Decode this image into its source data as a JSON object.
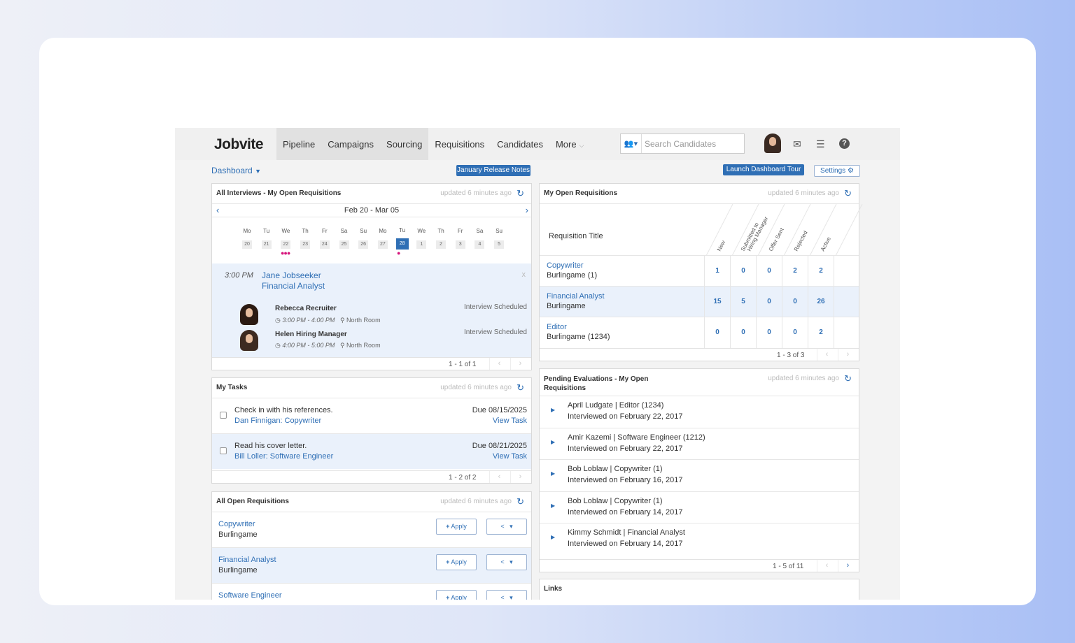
{
  "nav": {
    "logo": "Jobvite",
    "tabs": [
      "Pipeline",
      "Campaigns",
      "Sourcing",
      "Requisitions",
      "Candidates",
      "More"
    ],
    "search_placeholder": "Search Candidates"
  },
  "toolbar": {
    "dashboard": "Dashboard",
    "release_notes": "January Release Notes",
    "tour": "Launch Dashboard Tour",
    "settings": "Settings"
  },
  "interviews": {
    "title": "All Interviews - My Open Requisitions",
    "updated": "updated 6 minutes ago",
    "range": "Feb 20 - Mar 05",
    "days": [
      {
        "n": "Mo",
        "d": "20"
      },
      {
        "n": "Tu",
        "d": "21"
      },
      {
        "n": "We",
        "d": "22"
      },
      {
        "n": "Th",
        "d": "23"
      },
      {
        "n": "Fr",
        "d": "24"
      },
      {
        "n": "Sa",
        "d": "25"
      },
      {
        "n": "Su",
        "d": "26"
      },
      {
        "n": "Mo",
        "d": "27"
      },
      {
        "n": "Tu",
        "d": "28"
      },
      {
        "n": "We",
        "d": "1"
      },
      {
        "n": "Th",
        "d": "2"
      },
      {
        "n": "Fr",
        "d": "3"
      },
      {
        "n": "Sa",
        "d": "4"
      },
      {
        "n": "Su",
        "d": "5"
      }
    ],
    "time": "3:00 PM",
    "candidate": "Jane Jobseeker",
    "role": "Financial Analyst",
    "close": "x",
    "interviewers": [
      {
        "name": "Rebecca Recruiter",
        "status": "Interview Scheduled",
        "time": "3:00 PM - 4:00 PM",
        "room": "North Room"
      },
      {
        "name": "Helen Hiring Manager",
        "status": "Interview Scheduled",
        "time": "4:00 PM - 5:00 PM",
        "room": "North Room"
      }
    ],
    "paging": "1 - 1 of 1"
  },
  "tasks": {
    "title": "My Tasks",
    "updated": "updated 6 minutes ago",
    "items": [
      {
        "text": "Check in with his references.",
        "link": "Dan Finnigan: Copywriter",
        "due": "Due 08/15/2025",
        "view": "View Task"
      },
      {
        "text": "Read his cover letter.",
        "link": "Bill Loller: Software Engineer",
        "due": "Due 08/21/2025",
        "view": "View Task"
      }
    ],
    "paging": "1 - 2 of 2"
  },
  "all_reqs": {
    "title": "All Open Requisitions",
    "updated": "updated 6 minutes ago",
    "apply": "Apply",
    "items": [
      {
        "title": "Copywriter",
        "loc": "Burlingame"
      },
      {
        "title": "Financial Analyst",
        "loc": "Burlingame"
      },
      {
        "title": "Software Engineer",
        "loc": ""
      }
    ]
  },
  "my_reqs": {
    "title": "My Open Requisitions",
    "updated": "updated 6 minutes ago",
    "col_title": "Requisition Title",
    "cols": [
      "New",
      "Submitted to Hiring Manager",
      "Offer Sent",
      "Rejected",
      "Active"
    ],
    "rows": [
      {
        "title": "Copywriter",
        "loc": "Burlingame (1)",
        "v": [
          "1",
          "0",
          "0",
          "2",
          "2"
        ]
      },
      {
        "title": "Financial Analyst",
        "loc": "Burlingame",
        "v": [
          "15",
          "5",
          "0",
          "0",
          "26"
        ]
      },
      {
        "title": "Editor",
        "loc": "Burlingame (1234)",
        "v": [
          "0",
          "0",
          "0",
          "0",
          "2"
        ]
      }
    ],
    "paging": "1 - 3 of 3"
  },
  "evals": {
    "title_1": "Pending Evaluations - My Open",
    "title_2": "Requisitions",
    "updated": "updated 6 minutes ago",
    "items": [
      {
        "who": "April Ludgate | Editor (1234)",
        "when": "Interviewed on February 22, 2017"
      },
      {
        "who": "Amir Kazemi | Software Engineer (1212)",
        "when": "Interviewed on February 22, 2017"
      },
      {
        "who": "Bob Loblaw | Copywriter (1)",
        "when": "Interviewed on February 16, 2017"
      },
      {
        "who": "Bob Loblaw | Copywriter (1)",
        "when": "Interviewed on February 14, 2017"
      },
      {
        "who": "Kimmy Schmidt | Financial Analyst",
        "when": "Interviewed on February 14, 2017"
      }
    ],
    "paging": "1 - 5 of 11"
  },
  "links": {
    "title": "Links"
  }
}
